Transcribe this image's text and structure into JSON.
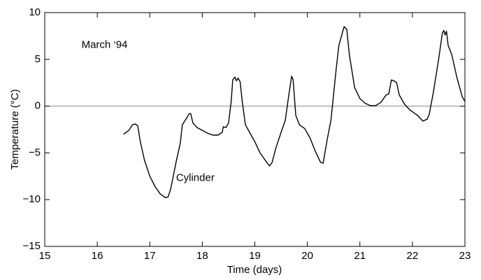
{
  "chart_data": {
    "type": "line",
    "xlabel": "Time (days)",
    "ylabel": "Temperature (°C)",
    "annotations": [
      {
        "text": "March ‘94",
        "x": 15.7,
        "y": 6.5
      },
      {
        "text": "Cylinder",
        "x": 17.5,
        "y": -7.7
      }
    ],
    "xlim": [
      15,
      23
    ],
    "xticks": [
      15,
      16,
      17,
      18,
      19,
      20,
      21,
      22,
      23
    ],
    "ylim": [
      -15,
      10
    ],
    "yticks": [
      {
        "value": -15,
        "label": "−15"
      },
      {
        "value": -10,
        "label": "−10"
      },
      {
        "value": -5,
        "label": "−5"
      },
      0,
      5,
      10
    ],
    "hline": 0,
    "color": "#000000",
    "series": [
      {
        "name": "Cylinder",
        "color": "#000000",
        "x": [
          16.5,
          16.6,
          16.67,
          16.72,
          16.77,
          16.82,
          16.9,
          17.0,
          17.1,
          17.2,
          17.3,
          17.35,
          17.4,
          17.5,
          17.58,
          17.62,
          17.7,
          17.75,
          17.78,
          17.82,
          17.9,
          18.0,
          18.1,
          18.2,
          18.3,
          18.38,
          18.4,
          18.45,
          18.5,
          18.55,
          18.58,
          18.62,
          18.65,
          18.68,
          18.72,
          18.76,
          18.82,
          18.9,
          19.0,
          19.1,
          19.2,
          19.28,
          19.33,
          19.4,
          19.5,
          19.58,
          19.63,
          19.7,
          19.73,
          19.78,
          19.85,
          19.95,
          20.05,
          20.15,
          20.25,
          20.3,
          20.38,
          20.45,
          20.55,
          20.6,
          20.7,
          20.75,
          20.8,
          20.9,
          21.0,
          21.1,
          21.2,
          21.3,
          21.4,
          21.5,
          21.55,
          21.6,
          21.65,
          21.7,
          21.75,
          21.85,
          21.95,
          22.05,
          22.1,
          22.15,
          22.2,
          22.28,
          22.32,
          22.4,
          22.5,
          22.57,
          22.6,
          22.62,
          22.65,
          22.68,
          22.75,
          22.85,
          22.95,
          23.0
        ],
        "values": [
          -3.0,
          -2.6,
          -2.0,
          -1.9,
          -2.1,
          -3.8,
          -5.8,
          -7.5,
          -8.6,
          -9.4,
          -9.8,
          -9.7,
          -8.8,
          -6.0,
          -4.0,
          -2.0,
          -1.3,
          -0.8,
          -0.8,
          -1.8,
          -2.3,
          -2.6,
          -2.9,
          -3.1,
          -3.1,
          -2.8,
          -2.2,
          -2.3,
          -1.8,
          0.5,
          2.8,
          3.1,
          2.7,
          3.0,
          2.6,
          0.5,
          -2.0,
          -2.8,
          -3.8,
          -5.0,
          -5.8,
          -6.4,
          -6.0,
          -4.5,
          -2.8,
          -1.5,
          0.5,
          3.2,
          2.8,
          -1.0,
          -2.0,
          -2.4,
          -3.4,
          -4.8,
          -6.0,
          -6.1,
          -3.5,
          -1.5,
          4.0,
          6.5,
          8.5,
          8.2,
          5.5,
          2.0,
          0.8,
          0.3,
          0.05,
          0.05,
          0.4,
          1.2,
          1.3,
          2.8,
          2.7,
          2.5,
          1.2,
          0.2,
          -0.4,
          -0.8,
          -1.0,
          -1.3,
          -1.6,
          -1.4,
          -0.9,
          1.5,
          5.0,
          7.8,
          8.1,
          7.6,
          8.0,
          6.5,
          5.5,
          3.0,
          1.0,
          0.5
        ]
      }
    ]
  }
}
